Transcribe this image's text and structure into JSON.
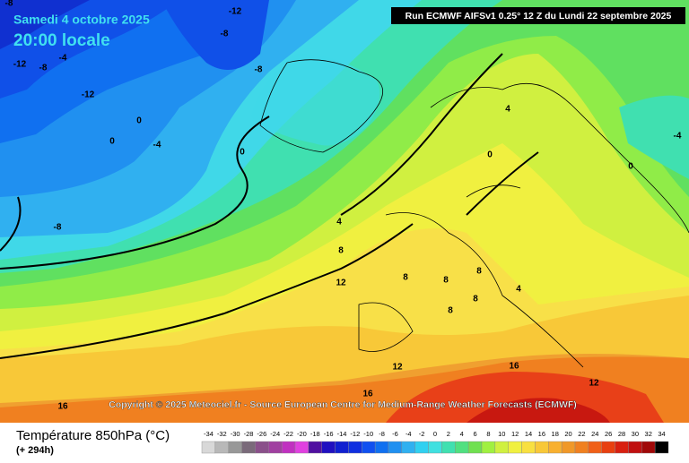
{
  "header": {
    "date": "Samedi 4 octobre 2025",
    "time": "20:00 locale",
    "run": "Run ECMWF AIFSv1 0.25° 12 Z du Lundi 22 septembre 2025"
  },
  "copyright": "Copyright © 2025 Meteociel.fr - Source European Centre for Medium-Range Weather Forecasts (ECMWF)",
  "legend": {
    "title": "Température 850hPa (°C)",
    "subtitle": "(+ 294h)",
    "values": [
      -34,
      -32,
      -30,
      -28,
      -26,
      -24,
      -22,
      -20,
      -18,
      -16,
      -14,
      -12,
      -10,
      -8,
      -6,
      -4,
      -2,
      0,
      2,
      4,
      6,
      8,
      10,
      12,
      14,
      16,
      18,
      20,
      22,
      24,
      26,
      28,
      30,
      32,
      34
    ],
    "colors": [
      "#d8d8d8",
      "#b8b8b8",
      "#989898",
      "#7a6a7a",
      "#8a508a",
      "#a040a0",
      "#c030c0",
      "#e040e0",
      "#5010a0",
      "#2010c0",
      "#1020d0",
      "#1030e0",
      "#1050f0",
      "#1070f0",
      "#2090f0",
      "#30b0f0",
      "#30d0f0",
      "#40e0e0",
      "#40e0b0",
      "#50e080",
      "#70e050",
      "#a0f040",
      "#d0f040",
      "#f0f040",
      "#f8e040",
      "#f8c838",
      "#f8b030",
      "#f09828",
      "#f08020",
      "#f06018",
      "#e84010",
      "#d82010",
      "#c01010",
      "#a00808",
      "#000000"
    ]
  },
  "contour_labels": [
    -8,
    -12,
    -8,
    -12,
    -8,
    -4,
    -8,
    -12,
    0,
    0,
    -4,
    0,
    -8,
    4,
    8,
    12,
    0,
    4,
    -4,
    0,
    8,
    8,
    8,
    8,
    8,
    4,
    12,
    16,
    16,
    12,
    16
  ]
}
